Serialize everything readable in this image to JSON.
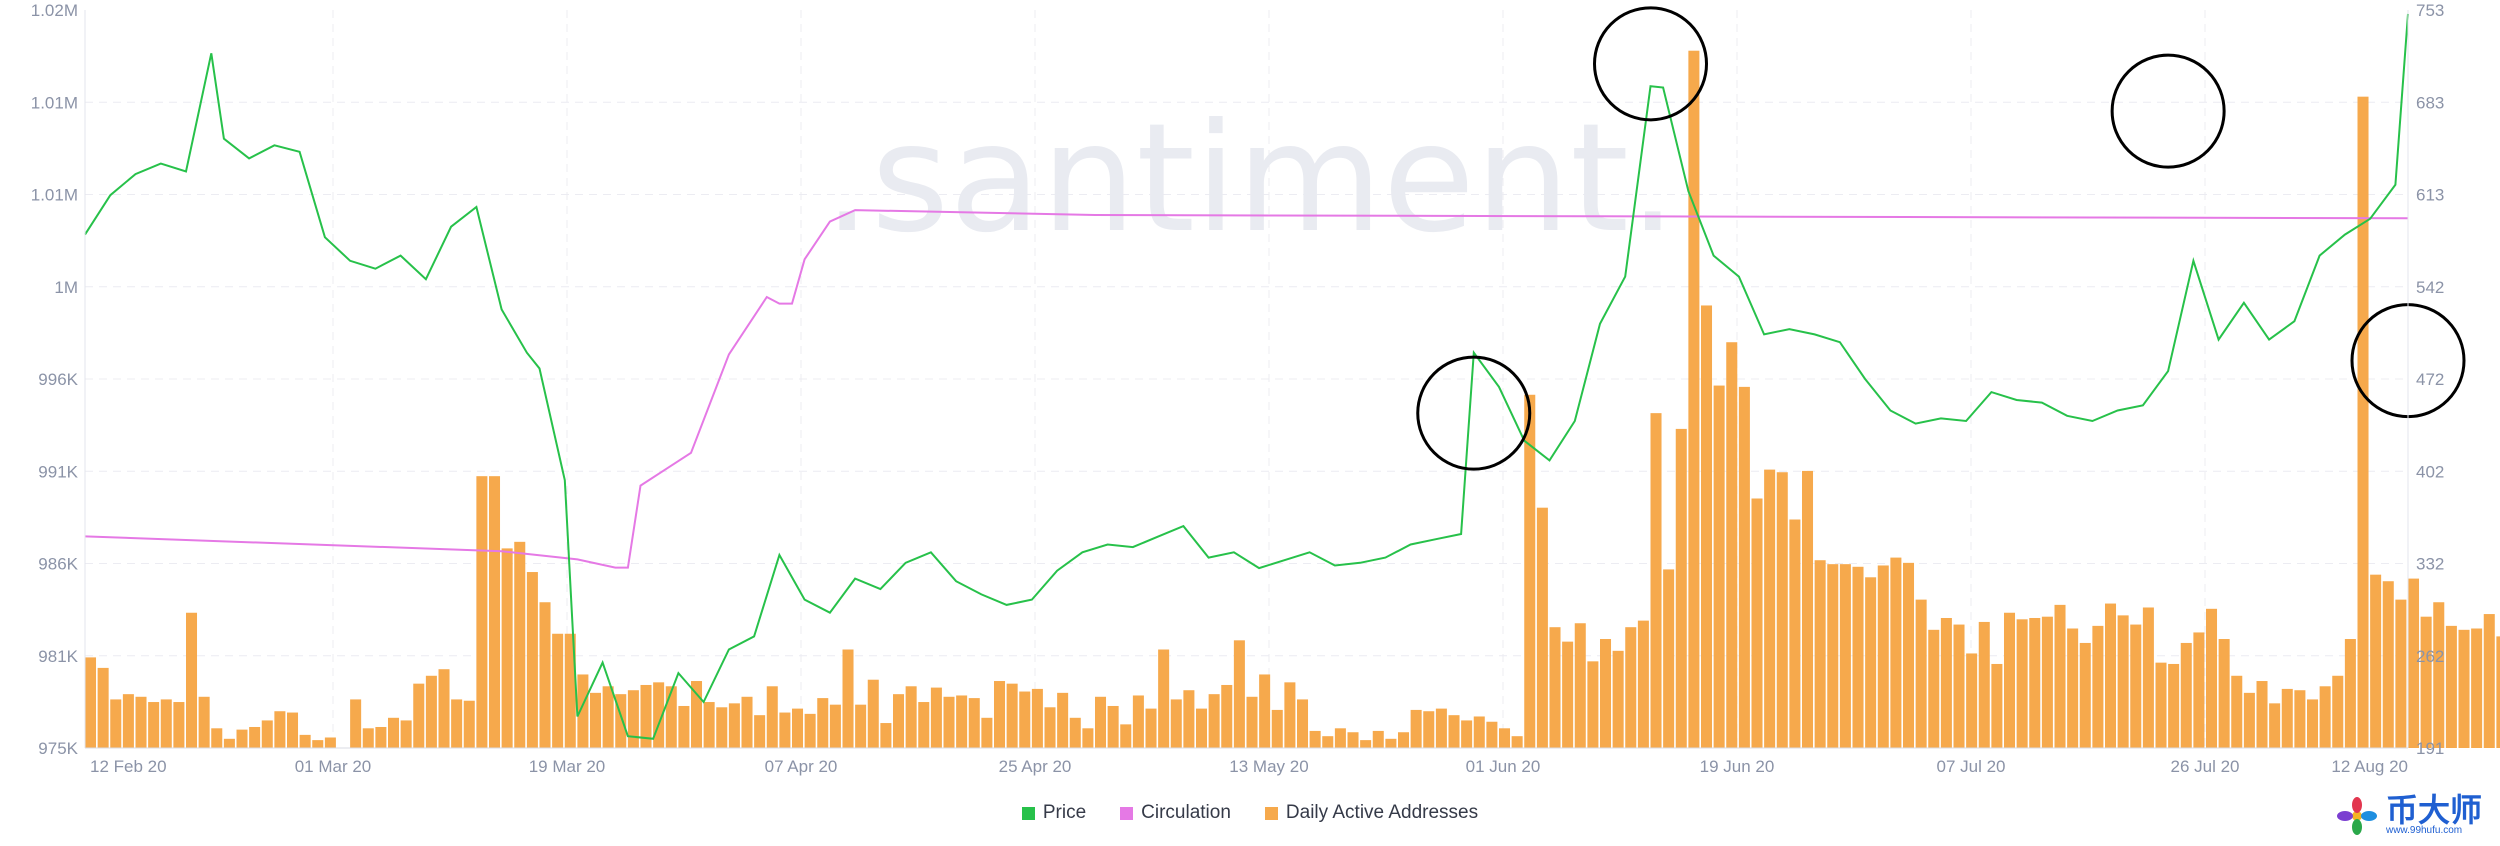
{
  "chart_data": {
    "type": "bar+line",
    "watermark": ".santiment.",
    "x_axis": {
      "range": [
        "2020-02-11",
        "2020-08-13"
      ],
      "tick_labels": [
        "12 Feb 20",
        "01 Mar 20",
        "19 Mar 20",
        "07 Apr 20",
        "25 Apr 20",
        "13 May 20",
        "01 Jun 20",
        "19 Jun 20",
        "07 Jul 20",
        "26 Jul 20",
        "12 Aug 20"
      ]
    },
    "y_left": {
      "min": 975000,
      "max": 1020000,
      "tick_labels": [
        "1.02M",
        "1.01M",
        "1.01M",
        "1M",
        "996K",
        "991K",
        "986K",
        "981K",
        "975K"
      ]
    },
    "y_right": {
      "min": 191,
      "max": 753,
      "tick_labels": [
        "753",
        "683",
        "613",
        "542",
        "472",
        "402",
        "332",
        "262",
        "191"
      ]
    },
    "grid": true,
    "legend_position": "bottom-center",
    "series": [
      {
        "name": "Price",
        "type": "line",
        "axis": "right",
        "color": "#27c14a",
        "points": [
          [
            "2020-02-11",
            582
          ],
          [
            "2020-02-13",
            612
          ],
          [
            "2020-02-15",
            628
          ],
          [
            "2020-02-17",
            636
          ],
          [
            "2020-02-19",
            630
          ],
          [
            "2020-02-21",
            720
          ],
          [
            "2020-02-22",
            655
          ],
          [
            "2020-02-24",
            640
          ],
          [
            "2020-02-26",
            650
          ],
          [
            "2020-02-28",
            645
          ],
          [
            "2020-03-01",
            580
          ],
          [
            "2020-03-03",
            562
          ],
          [
            "2020-03-05",
            556
          ],
          [
            "2020-03-07",
            566
          ],
          [
            "2020-03-09",
            548
          ],
          [
            "2020-03-11",
            588
          ],
          [
            "2020-03-13",
            603
          ],
          [
            "2020-03-15",
            525
          ],
          [
            "2020-03-17",
            492
          ],
          [
            "2020-03-18",
            480
          ],
          [
            "2020-03-20",
            395
          ],
          [
            "2020-03-21",
            215
          ],
          [
            "2020-03-23",
            256
          ],
          [
            "2020-03-25",
            200
          ],
          [
            "2020-03-27",
            198
          ],
          [
            "2020-03-29",
            248
          ],
          [
            "2020-03-31",
            226
          ],
          [
            "2020-04-02",
            266
          ],
          [
            "2020-04-04",
            276
          ],
          [
            "2020-04-06",
            338
          ],
          [
            "2020-04-08",
            304
          ],
          [
            "2020-04-10",
            294
          ],
          [
            "2020-04-12",
            320
          ],
          [
            "2020-04-14",
            312
          ],
          [
            "2020-04-16",
            332
          ],
          [
            "2020-04-18",
            340
          ],
          [
            "2020-04-20",
            318
          ],
          [
            "2020-04-22",
            308
          ],
          [
            "2020-04-24",
            300
          ],
          [
            "2020-04-26",
            304
          ],
          [
            "2020-04-28",
            326
          ],
          [
            "2020-04-30",
            340
          ],
          [
            "2020-05-02",
            346
          ],
          [
            "2020-05-04",
            344
          ],
          [
            "2020-05-06",
            352
          ],
          [
            "2020-05-08",
            360
          ],
          [
            "2020-05-10",
            336
          ],
          [
            "2020-05-12",
            340
          ],
          [
            "2020-05-14",
            328
          ],
          [
            "2020-05-16",
            334
          ],
          [
            "2020-05-18",
            340
          ],
          [
            "2020-05-20",
            330
          ],
          [
            "2020-05-22",
            332
          ],
          [
            "2020-05-24",
            336
          ],
          [
            "2020-05-26",
            346
          ],
          [
            "2020-05-28",
            350
          ],
          [
            "2020-05-30",
            354
          ],
          [
            "2020-05-31",
            492
          ],
          [
            "2020-06-02",
            466
          ],
          [
            "2020-06-04",
            425
          ],
          [
            "2020-06-06",
            410
          ],
          [
            "2020-06-08",
            440
          ],
          [
            "2020-06-10",
            514
          ],
          [
            "2020-06-12",
            550
          ],
          [
            "2020-06-14",
            695
          ],
          [
            "2020-06-15",
            694
          ],
          [
            "2020-06-17",
            615
          ],
          [
            "2020-06-19",
            566
          ],
          [
            "2020-06-21",
            550
          ],
          [
            "2020-06-23",
            506
          ],
          [
            "2020-06-25",
            510
          ],
          [
            "2020-06-27",
            506
          ],
          [
            "2020-06-29",
            500
          ],
          [
            "2020-07-01",
            472
          ],
          [
            "2020-07-03",
            448
          ],
          [
            "2020-07-05",
            438
          ],
          [
            "2020-07-07",
            442
          ],
          [
            "2020-07-09",
            440
          ],
          [
            "2020-07-11",
            462
          ],
          [
            "2020-07-13",
            456
          ],
          [
            "2020-07-15",
            454
          ],
          [
            "2020-07-17",
            444
          ],
          [
            "2020-07-19",
            440
          ],
          [
            "2020-07-21",
            448
          ],
          [
            "2020-07-23",
            452
          ],
          [
            "2020-07-25",
            478
          ],
          [
            "2020-07-27",
            562
          ],
          [
            "2020-07-29",
            502
          ],
          [
            "2020-07-31",
            530
          ],
          [
            "2020-08-02",
            502
          ],
          [
            "2020-08-04",
            516
          ],
          [
            "2020-08-06",
            566
          ],
          [
            "2020-08-08",
            582
          ],
          [
            "2020-08-10",
            594
          ],
          [
            "2020-08-12",
            620
          ],
          [
            "2020-08-13",
            750
          ]
        ]
      },
      {
        "name": "Circulation",
        "type": "line",
        "axis": "left",
        "color": "#e579e5",
        "points": [
          [
            "2020-02-11",
            987900
          ],
          [
            "2020-03-15",
            987000
          ],
          [
            "2020-03-21",
            986500
          ],
          [
            "2020-03-24",
            986000
          ],
          [
            "2020-03-25",
            986000
          ],
          [
            "2020-03-26",
            991000
          ],
          [
            "2020-03-28",
            992000
          ],
          [
            "2020-03-30",
            993000
          ],
          [
            "2020-04-02",
            999000
          ],
          [
            "2020-04-05",
            1002500
          ],
          [
            "2020-04-06",
            1002100
          ],
          [
            "2020-04-07",
            1002100
          ],
          [
            "2020-04-08",
            1004800
          ],
          [
            "2020-04-10",
            1007100
          ],
          [
            "2020-04-12",
            1007800
          ],
          [
            "2020-05-01",
            1007500
          ],
          [
            "2020-08-13",
            1007300
          ]
        ]
      },
      {
        "name": "Daily Active Addresses",
        "type": "bar",
        "axis": "right",
        "color": "#f6a94c",
        "x_start": "2020-02-11",
        "values": [
          260,
          252,
          228,
          232,
          230,
          226,
          228,
          226,
          294,
          230,
          206,
          198,
          205,
          207,
          212,
          219,
          218,
          201,
          197,
          199,
          185,
          228,
          206,
          207,
          214,
          212,
          240,
          246,
          251,
          228,
          227,
          398,
          398,
          343,
          348,
          325,
          302,
          278,
          278,
          247,
          233,
          238,
          232,
          235,
          239,
          241,
          238,
          223,
          242,
          226,
          222,
          225,
          230,
          216,
          238,
          218,
          221,
          217,
          229,
          224,
          266,
          224,
          243,
          210,
          232,
          238,
          226,
          237,
          230,
          231,
          229,
          214,
          242,
          240,
          234,
          236,
          222,
          233,
          214,
          206,
          230,
          223,
          209,
          231,
          221,
          266,
          228,
          235,
          221,
          232,
          239,
          273,
          230,
          247,
          220,
          241,
          228,
          204,
          200,
          206,
          203,
          197,
          204,
          198,
          203,
          220,
          219,
          221,
          216,
          212,
          215,
          211,
          206,
          200,
          460,
          374,
          283,
          272,
          286,
          257,
          274,
          265,
          283,
          288,
          446,
          327,
          434,
          722,
          528,
          467,
          500,
          466,
          381,
          403,
          401,
          365,
          402,
          334,
          331,
          331,
          329,
          321,
          330,
          336,
          332,
          304,
          281,
          290,
          285,
          263,
          287,
          255,
          294,
          289,
          290,
          291,
          300,
          282,
          271,
          284,
          301,
          292,
          285,
          298,
          256,
          255,
          271,
          279,
          297,
          274,
          246,
          233,
          242,
          225,
          236,
          235,
          228,
          238,
          246,
          274,
          687,
          323,
          318,
          304,
          320,
          291,
          302,
          284,
          281,
          282,
          293,
          276,
          274,
          270,
          266,
          238,
          239,
          295,
          345,
          505
        ]
      }
    ]
  },
  "legend": {
    "items": [
      {
        "label": "Price",
        "color": "#27c14a"
      },
      {
        "label": "Circulation",
        "color": "#e579e5"
      },
      {
        "label": "Daily Active Addresses",
        "color": "#f6a94c"
      }
    ]
  },
  "annotations": [
    {
      "shape": "circle",
      "date": "2020-05-31",
      "value": 446
    },
    {
      "shape": "circle",
      "date": "2020-06-14",
      "value": 712
    },
    {
      "shape": "circle",
      "date": "2020-07-25",
      "value": 676
    },
    {
      "shape": "circle",
      "date": "2020-08-13",
      "value": 486
    }
  ],
  "logo": {
    "name": "币大师",
    "url": "www.99hufu.com"
  }
}
